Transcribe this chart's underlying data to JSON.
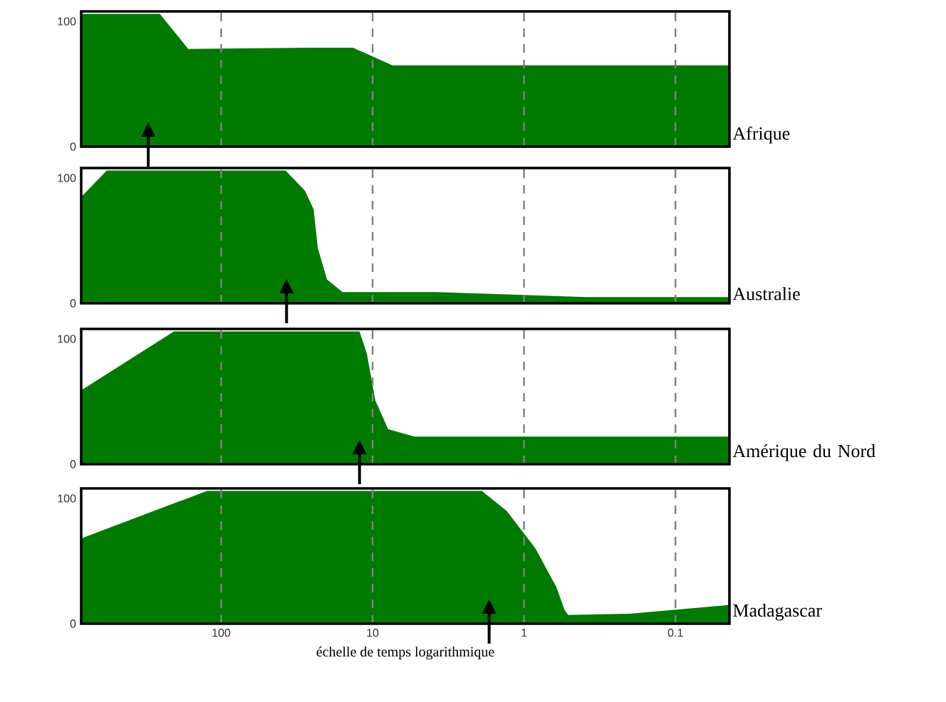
{
  "chart_data": [
    {
      "type": "area",
      "xlim": [
        840,
        0.044
      ],
      "xticks": [
        100,
        10,
        1,
        0.1
      ],
      "ylim": [
        0,
        108
      ],
      "yticks": [
        0,
        100
      ],
      "log": "x",
      "grid": "x",
      "tick_labels": "y",
      "legend": false,
      "x": [
        840,
        254,
        165,
        27,
        13.5,
        7.4,
        0.044
      ],
      "series": [
        {
          "name": "Afrique",
          "color": "#007a00",
          "values": [
            106,
            106,
            78,
            79,
            79,
            65,
            65
          ]
        }
      ],
      "ref_lines": [
        {
          "axis": "x",
          "value": 303
        }
      ]
    },
    {
      "type": "area",
      "xlim": [
        840,
        0.044
      ],
      "xticks": [
        100,
        10,
        1,
        0.1
      ],
      "ylim": [
        0,
        108
      ],
      "yticks": [
        0,
        100
      ],
      "log": "x",
      "grid": "x",
      "tick_labels": "y",
      "legend": false,
      "x": [
        840,
        569,
        37.6,
        28,
        24.5,
        23,
        20,
        15.8,
        3.8,
        0.39,
        0.044
      ],
      "series": [
        {
          "name": "Australie",
          "color": "#007a00",
          "values": [
            85,
            106,
            106,
            90,
            75,
            44,
            19,
            9,
            9,
            5,
            5
          ]
        }
      ],
      "ref_lines": [
        {
          "axis": "x",
          "value": 37
        }
      ]
    },
    {
      "type": "area",
      "xlim": [
        840,
        0.044
      ],
      "xticks": [
        100,
        10,
        1,
        0.1
      ],
      "ylim": [
        0,
        108
      ],
      "yticks": [
        0,
        100
      ],
      "log": "x",
      "grid": "x",
      "tick_labels": "y",
      "legend": false,
      "x": [
        840,
        205,
        12.2,
        10.9,
        9.6,
        7.9,
        5.3,
        0.044
      ],
      "series": [
        {
          "name": "Amérique du Nord",
          "color": "#007a00",
          "values": [
            59,
            106,
            106,
            88,
            51,
            28,
            22,
            22
          ]
        }
      ],
      "ref_lines": [
        {
          "axis": "x",
          "value": 12.2
        }
      ]
    },
    {
      "type": "area",
      "xlim": [
        840,
        0.044
      ],
      "xticks": [
        100,
        10,
        1,
        0.1
      ],
      "ylim": [
        0,
        108
      ],
      "yticks": [
        0,
        100
      ],
      "log": "x",
      "grid": "x",
      "legend": false,
      "xlabel": "échelle de temps logarithmique",
      "x": [
        840,
        124,
        1.9,
        1.3,
        0.84,
        0.61,
        0.54,
        0.51,
        0.2,
        0.044
      ],
      "series": [
        {
          "name": "Madagascar",
          "color": "#007a00",
          "values": [
            68,
            106,
            106,
            90,
            60,
            29,
            11,
            7,
            8,
            15
          ]
        }
      ],
      "ref_lines": [
        {
          "axis": "x",
          "value": 1.7
        }
      ]
    }
  ]
}
